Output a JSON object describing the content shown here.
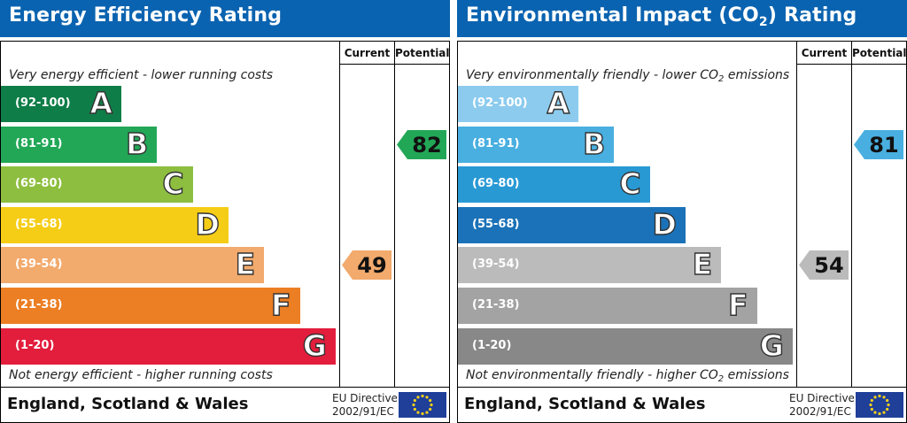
{
  "chart_data": [
    {
      "type": "bar",
      "title": "Energy Efficiency Rating",
      "columns": [
        "Current",
        "Potential"
      ],
      "top_note": "Very energy efficient - lower running costs",
      "bottom_note": "Not energy efficient - higher running costs",
      "bands": [
        {
          "range": "(92-100)",
          "letter": "A",
          "color": "#0f7d48"
        },
        {
          "range": "(81-91)",
          "letter": "B",
          "color": "#22a757"
        },
        {
          "range": "(69-80)",
          "letter": "C",
          "color": "#8dbe3f"
        },
        {
          "range": "(55-68)",
          "letter": "D",
          "color": "#f5cd17"
        },
        {
          "range": "(39-54)",
          "letter": "E",
          "color": "#f2aa6d"
        },
        {
          "range": "(21-38)",
          "letter": "F",
          "color": "#ec7e23"
        },
        {
          "range": "(1-20)",
          "letter": "G",
          "color": "#e31d3c"
        }
      ],
      "current": {
        "value": 49,
        "band": "E",
        "color": "#f2aa6d"
      },
      "potential": {
        "value": 82,
        "band": "B",
        "color": "#22a757"
      },
      "footer": "England, Scotland & Wales",
      "directive_line1": "EU Directive",
      "directive_line2": "2002/91/EC"
    },
    {
      "type": "bar",
      "title": "Environmental Impact (CO",
      "title_sub": "2",
      "title_end": ") Rating",
      "columns": [
        "Current",
        "Potential"
      ],
      "top_note": "Very environmentally friendly - lower CO",
      "top_note_sub": "2",
      "top_note_end": " emissions",
      "bottom_note": "Not environmentally friendly - higher CO",
      "bottom_note_sub": "2",
      "bottom_note_end": " emissions",
      "bands": [
        {
          "range": "(92-100)",
          "letter": "A",
          "color": "#8ccbee"
        },
        {
          "range": "(81-91)",
          "letter": "B",
          "color": "#49afe0"
        },
        {
          "range": "(69-80)",
          "letter": "C",
          "color": "#2999d4"
        },
        {
          "range": "(55-68)",
          "letter": "D",
          "color": "#1b72b8"
        },
        {
          "range": "(39-54)",
          "letter": "E",
          "color": "#bbbbbb"
        },
        {
          "range": "(21-38)",
          "letter": "F",
          "color": "#a3a3a3"
        },
        {
          "range": "(1-20)",
          "letter": "G",
          "color": "#888888"
        }
      ],
      "current": {
        "value": 54,
        "band": "E",
        "color": "#bbbbbb"
      },
      "potential": {
        "value": 81,
        "band": "B",
        "color": "#49afe0"
      },
      "footer": "England, Scotland & Wales",
      "directive_line1": "EU Directive",
      "directive_line2": "2002/91/EC"
    }
  ]
}
